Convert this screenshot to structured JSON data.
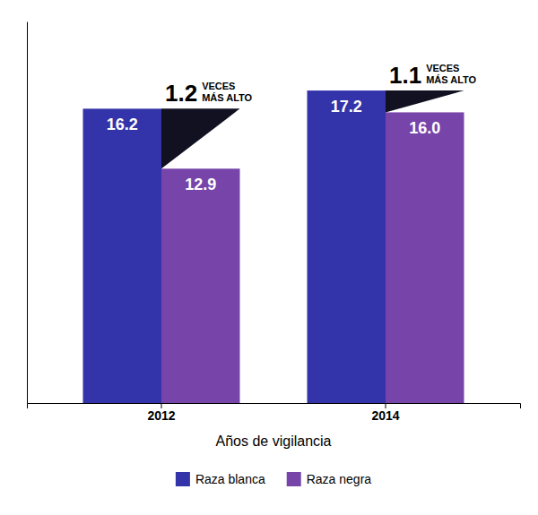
{
  "chart_data": {
    "type": "bar",
    "categories": [
      "2012",
      "2014"
    ],
    "series": [
      {
        "name": "Raza blanca",
        "color": "#3333aa",
        "values": [
          16.2,
          17.2
        ]
      },
      {
        "name": "Raza negra",
        "color": "#7744aa",
        "values": [
          12.9,
          16.0
        ],
        "value_labels": [
          "12.9",
          "16.0"
        ]
      }
    ],
    "color": "#111122",
    "annotations": [
      {
        "text": "1.2",
        "lines": [
          "VECES",
          "MÁS ALTO"
        ]
      },
      {
        "text": "1.1",
        "lines": [
          "VECES",
          "MÁS ALTO"
        ]
      }
    ],
    "xlabel": "Años de vigilancia",
    "ylim": [
      0,
      21
    ],
    "tick_labels": "x",
    "grid": false,
    "data_labels": true,
    "legend": "bottom"
  }
}
